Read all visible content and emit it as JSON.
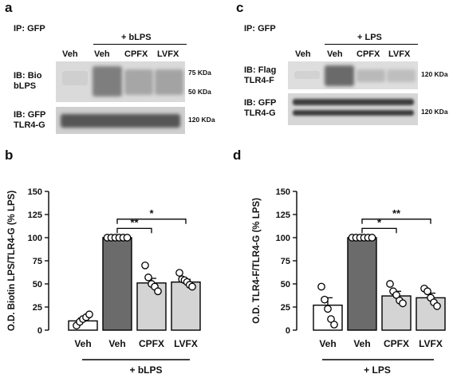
{
  "panel_a": {
    "letter": "a",
    "ip_label": "IP: GFP",
    "treatment_label": "+ bLPS",
    "lanes": [
      "Veh",
      "Veh",
      "CPFX",
      "LVFX"
    ],
    "blot1_label_line1": "IB: Bio",
    "blot1_label_line2": "bLPS",
    "blot2_label_line1": "IB: GFP",
    "blot2_label_line2": "TLR4-G",
    "mw_75": "75 KDa",
    "mw_50": "50 KDa",
    "mw_120": "120 KDa"
  },
  "panel_c": {
    "letter": "c",
    "ip_label": "IP: GFP",
    "treatment_label": "+ LPS",
    "lanes": [
      "Veh",
      "Veh",
      "CPFX",
      "LVFX"
    ],
    "blot1_label_line1": "IB: Flag",
    "blot1_label_line2": "TLR4-F",
    "blot2_label_line1": "IB: GFP",
    "blot2_label_line2": "TLR4-G",
    "mw_120a": "120 KDa",
    "mw_120b": "120 KDa"
  },
  "chart_data": [
    {
      "panel": "b",
      "type": "bar",
      "categories": [
        "Veh",
        "Veh",
        "CPFX",
        "LVFX"
      ],
      "values": [
        10,
        100,
        51,
        52
      ],
      "errors": [
        3,
        0,
        5,
        3
      ],
      "bar_colors": [
        "#ffffff",
        "#6b6b6b",
        "#d4d4d4",
        "#d4d4d4"
      ],
      "points": [
        [
          5,
          9,
          12,
          14,
          17
        ],
        [
          100,
          100,
          100,
          100,
          100,
          100
        ],
        [
          70,
          57,
          50,
          47,
          42
        ],
        [
          62,
          55,
          54,
          52,
          49,
          47
        ]
      ],
      "ylabel": "O.D. Biotin LPS/TLR4-G (% LPS)",
      "ylim": [
        0,
        150
      ],
      "yticks": [
        0,
        25,
        50,
        75,
        100,
        125,
        150
      ],
      "group_label": "+ bLPS",
      "significance": [
        {
          "from": 1,
          "to": 2,
          "label": "**"
        },
        {
          "from": 1,
          "to": 3,
          "label": "*"
        }
      ]
    },
    {
      "panel": "d",
      "type": "bar",
      "categories": [
        "Veh",
        "Veh",
        "CPFX",
        "LVFX"
      ],
      "values": [
        27,
        100,
        37,
        35
      ],
      "errors": [
        8,
        0,
        5,
        5
      ],
      "bar_colors": [
        "#ffffff",
        "#6b6b6b",
        "#d4d4d4",
        "#d4d4d4"
      ],
      "points": [
        [
          47,
          33,
          23,
          12,
          6
        ],
        [
          100,
          100,
          100,
          100,
          100,
          100
        ],
        [
          50,
          42,
          38,
          32,
          29
        ],
        [
          45,
          42,
          35,
          30,
          26
        ]
      ],
      "ylabel": "O.D. TLR4-F/TLR4-G (% LPS)",
      "ylim": [
        0,
        150
      ],
      "yticks": [
        0,
        25,
        50,
        75,
        100,
        125,
        150
      ],
      "group_label": "+ LPS",
      "significance": [
        {
          "from": 1,
          "to": 2,
          "label": "*"
        },
        {
          "from": 1,
          "to": 3,
          "label": "**"
        }
      ]
    }
  ]
}
